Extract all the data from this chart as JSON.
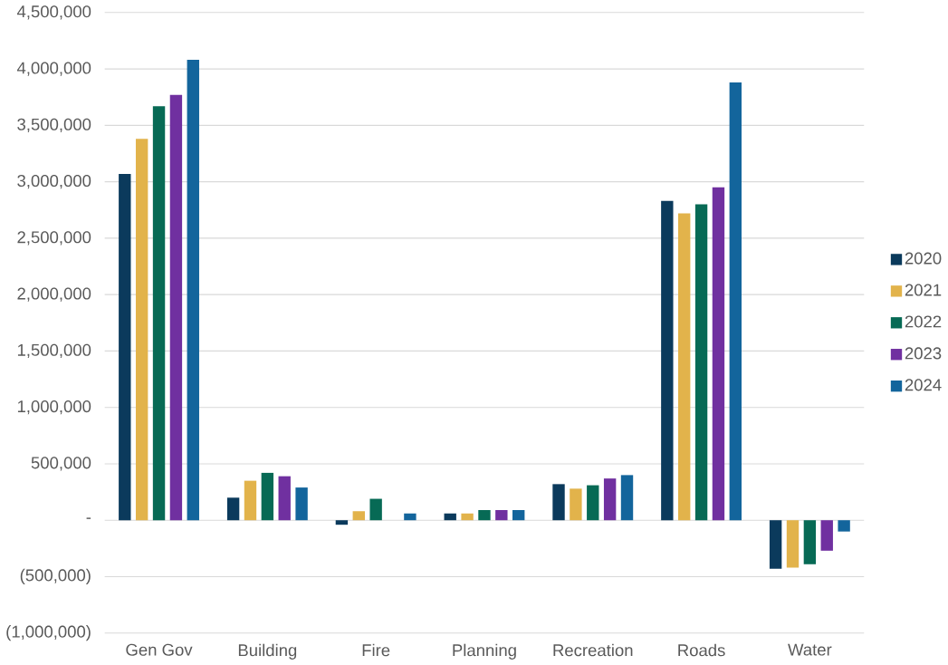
{
  "chart_data": {
    "type": "bar",
    "categories": [
      "Gen Gov",
      "Building",
      "Fire",
      "Planning",
      "Recreation",
      "Roads",
      "Water"
    ],
    "series": [
      {
        "name": "2020",
        "color": "#0b3a5c",
        "values": [
          3070000,
          200000,
          -40000,
          60000,
          320000,
          2830000,
          -430000
        ]
      },
      {
        "name": "2021",
        "color": "#e2b34b",
        "values": [
          3380000,
          350000,
          80000,
          60000,
          280000,
          2720000,
          -420000
        ]
      },
      {
        "name": "2022",
        "color": "#076a55",
        "values": [
          3670000,
          420000,
          190000,
          90000,
          310000,
          2800000,
          -390000
        ]
      },
      {
        "name": "2023",
        "color": "#7030a0",
        "values": [
          3770000,
          390000,
          null,
          90000,
          370000,
          2950000,
          -270000
        ]
      },
      {
        "name": "2024",
        "color": "#13659c",
        "values": [
          4080000,
          290000,
          60000,
          90000,
          400000,
          3880000,
          -100000
        ]
      }
    ],
    "ylim": [
      -1000000,
      4500000
    ],
    "yticks": [
      {
        "value": -1000000,
        "label": "(1,000,000)"
      },
      {
        "value": -500000,
        "label": "(500,000)"
      },
      {
        "value": 0,
        "label": "-"
      },
      {
        "value": 500000,
        "label": "500,000"
      },
      {
        "value": 1000000,
        "label": "1,000,000"
      },
      {
        "value": 1500000,
        "label": "1,500,000"
      },
      {
        "value": 2000000,
        "label": "2,000,000"
      },
      {
        "value": 2500000,
        "label": "2,500,000"
      },
      {
        "value": 3000000,
        "label": "3,000,000"
      },
      {
        "value": 3500000,
        "label": "3,500,000"
      },
      {
        "value": 4000000,
        "label": "4,000,000"
      },
      {
        "value": 4500000,
        "label": "4,500,000"
      }
    ],
    "grid": "y",
    "legend": "right"
  }
}
